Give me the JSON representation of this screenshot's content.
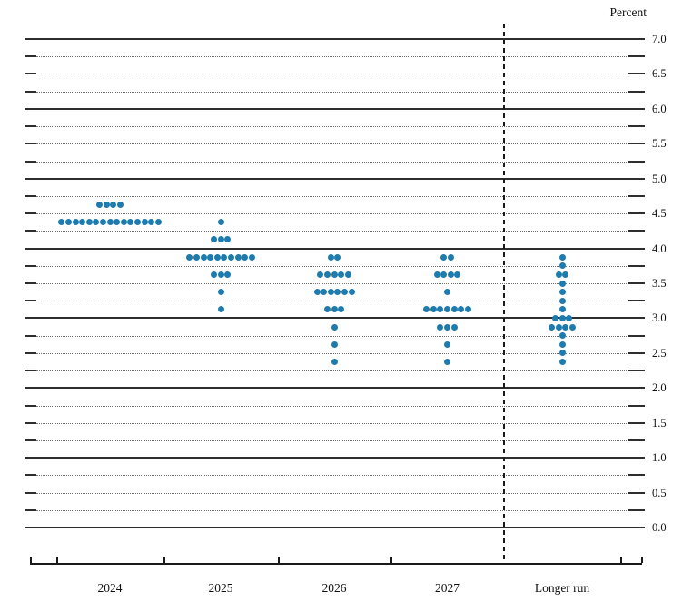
{
  "chart_data": {
    "type": "scatter",
    "subtype": "fomc-dot-plot",
    "unit_label": "Percent",
    "grid": true,
    "legend_position": "none",
    "dot_color": "#1d7cad",
    "y_axis": {
      "min": 0.0,
      "max": 7.0,
      "gridline_step": 0.25,
      "label_step": 0.5,
      "solid_line_every": 1.0,
      "tick_labels": [
        "7.0",
        "6.5",
        "6.0",
        "5.5",
        "5.0",
        "4.5",
        "4.0",
        "3.5",
        "3.0",
        "2.5",
        "2.0",
        "1.5",
        "1.0",
        "0.5",
        "0.0"
      ]
    },
    "categories": [
      "2024",
      "2025",
      "2026",
      "2027",
      "Longer run"
    ],
    "separator_before_category": "Longer run",
    "series": [
      {
        "category": "2024",
        "dots": [
          {
            "rate": 4.625,
            "count": 4
          },
          {
            "rate": 4.375,
            "count": 15
          }
        ]
      },
      {
        "category": "2025",
        "dots": [
          {
            "rate": 4.375,
            "count": 1
          },
          {
            "rate": 4.125,
            "count": 3
          },
          {
            "rate": 3.875,
            "count": 10
          },
          {
            "rate": 3.625,
            "count": 3
          },
          {
            "rate": 3.375,
            "count": 1
          },
          {
            "rate": 3.125,
            "count": 1
          }
        ]
      },
      {
        "category": "2026",
        "dots": [
          {
            "rate": 3.875,
            "count": 2
          },
          {
            "rate": 3.625,
            "count": 5
          },
          {
            "rate": 3.375,
            "count": 6
          },
          {
            "rate": 3.125,
            "count": 3
          },
          {
            "rate": 2.875,
            "count": 1
          },
          {
            "rate": 2.625,
            "count": 1
          },
          {
            "rate": 2.375,
            "count": 1
          }
        ]
      },
      {
        "category": "2027",
        "dots": [
          {
            "rate": 3.875,
            "count": 2
          },
          {
            "rate": 3.625,
            "count": 4
          },
          {
            "rate": 3.375,
            "count": 1
          },
          {
            "rate": 3.125,
            "count": 7
          },
          {
            "rate": 2.875,
            "count": 3
          },
          {
            "rate": 2.625,
            "count": 1
          },
          {
            "rate": 2.375,
            "count": 1
          }
        ]
      },
      {
        "category": "Longer run",
        "dots": [
          {
            "rate": 3.875,
            "count": 1
          },
          {
            "rate": 3.75,
            "count": 1
          },
          {
            "rate": 3.625,
            "count": 2
          },
          {
            "rate": 3.5,
            "count": 1
          },
          {
            "rate": 3.375,
            "count": 1
          },
          {
            "rate": 3.25,
            "count": 1
          },
          {
            "rate": 3.125,
            "count": 1
          },
          {
            "rate": 3.0,
            "count": 3
          },
          {
            "rate": 2.875,
            "count": 4
          },
          {
            "rate": 2.75,
            "count": 1
          },
          {
            "rate": 2.625,
            "count": 1
          },
          {
            "rate": 2.5,
            "count": 1
          },
          {
            "rate": 2.375,
            "count": 1
          }
        ]
      }
    ]
  }
}
